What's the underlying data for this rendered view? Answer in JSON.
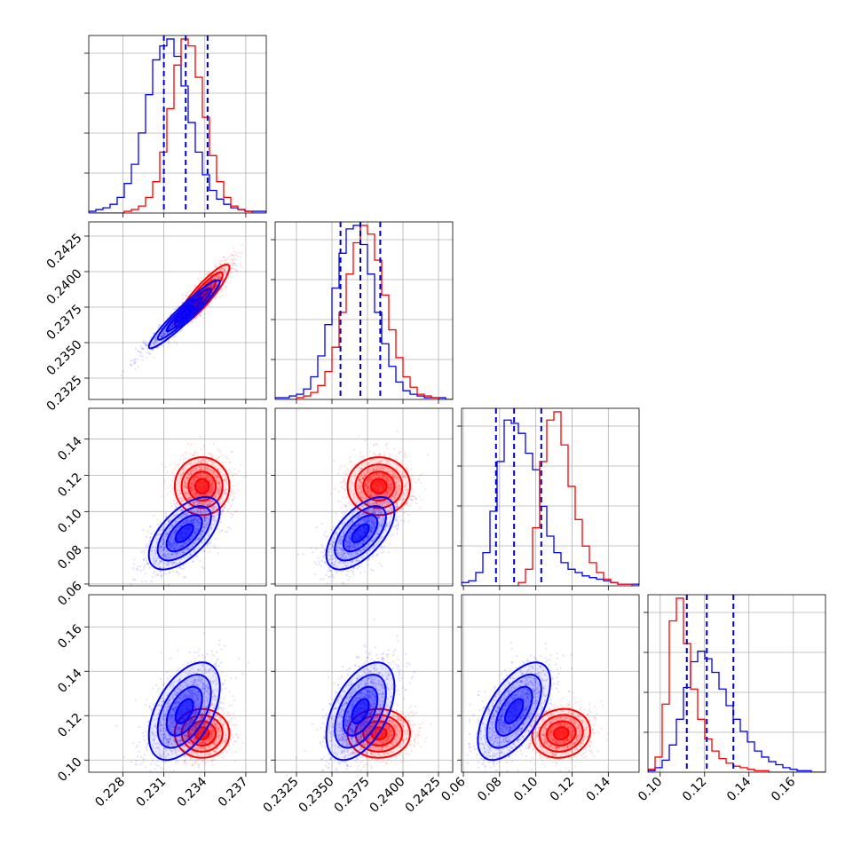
{
  "chart_data": {
    "type": "corner",
    "colors": {
      "series_a": "#0000ff",
      "series_b": "#ff0000",
      "quantiles": "#0000cc",
      "grid": "#b0b0b0"
    },
    "grid": true,
    "parameters": [
      {
        "range": [
          0.2255,
          0.2385
        ],
        "ticks": [
          {
            "value": 0.228,
            "label": "0.228"
          },
          {
            "value": 0.231,
            "label": "0.231"
          },
          {
            "value": 0.234,
            "label": "0.234"
          },
          {
            "value": 0.237,
            "label": "0.237"
          }
        ],
        "quantiles": [
          0.231,
          0.2326,
          0.2342
        ]
      },
      {
        "range": [
          0.231,
          0.2435
        ],
        "ticks": [
          {
            "value": 0.2325,
            "label": "0.2325"
          },
          {
            "value": 0.235,
            "label": "0.2350"
          },
          {
            "value": 0.2375,
            "label": "0.2375"
          },
          {
            "value": 0.24,
            "label": "0.2400"
          },
          {
            "value": 0.2425,
            "label": "0.2425"
          }
        ],
        "quantiles": [
          0.2356,
          0.237,
          0.2384
        ]
      },
      {
        "range": [
          0.059,
          0.157
        ],
        "ticks": [
          {
            "value": 0.06,
            "label": "0.06"
          },
          {
            "value": 0.08,
            "label": "0.08"
          },
          {
            "value": 0.1,
            "label": "0.10"
          },
          {
            "value": 0.12,
            "label": "0.12"
          },
          {
            "value": 0.14,
            "label": "0.14"
          }
        ],
        "quantiles": [
          0.078,
          0.088,
          0.103
        ]
      },
      {
        "range": [
          0.0945,
          0.1745
        ],
        "ticks": [
          {
            "value": 0.1,
            "label": "0.10"
          },
          {
            "value": 0.12,
            "label": "0.12"
          },
          {
            "value": 0.14,
            "label": "0.14"
          },
          {
            "value": 0.16,
            "label": "0.16"
          }
        ],
        "quantiles": [
          0.112,
          0.121,
          0.133
        ]
      }
    ],
    "series": [
      {
        "color": "#0000ff",
        "means": [
          0.2325,
          0.237,
          0.088,
          0.122
        ],
        "sds": [
          0.0013,
          0.0012,
          0.01,
          0.011
        ],
        "correlations": [
          [
            0,
            1,
            0.95
          ],
          [
            0,
            2,
            0.6
          ],
          [
            1,
            2,
            0.6
          ],
          [
            0,
            3,
            0.5
          ],
          [
            1,
            3,
            0.5
          ],
          [
            2,
            3,
            0.6
          ]
        ],
        "histograms": [
          {
            "edges": [
              0.2255,
              0.2385
            ],
            "counts": [
              1,
              2,
              3,
              5,
              9,
              17,
              28,
              46,
              68,
              88,
              96,
              100,
              90,
              73,
              52,
              35,
              22,
              13,
              8,
              5,
              3,
              2,
              1,
              1,
              1
            ]
          },
          {
            "edges": [
              0.231,
              0.2435
            ],
            "counts": [
              1,
              1,
              2,
              3,
              6,
              13,
              25,
              43,
              64,
              84,
              98,
              100,
              89,
              72,
              50,
              32,
              19,
              10,
              5,
              3,
              2,
              1,
              1,
              1,
              0
            ]
          },
          {
            "edges": [
              0.059,
              0.157
            ],
            "counts": [
              2,
              3,
              8,
              20,
              45,
              75,
              100,
              98,
              92,
              80,
              70,
              48,
              30,
              20,
              14,
              10,
              8,
              6,
              5,
              4,
              3,
              2,
              1,
              1,
              1
            ]
          },
          {
            "edges": [
              0.0945,
              0.1745
            ],
            "counts": [
              1,
              3,
              8,
              18,
              35,
              56,
              73,
              80,
              75,
              66,
              55,
              44,
              35,
              27,
              20,
              14,
              10,
              7,
              5,
              3,
              2,
              1,
              1,
              0,
              0
            ]
          }
        ]
      },
      {
        "color": "#ff0000",
        "means": [
          0.2338,
          0.2383,
          0.114,
          0.112
        ],
        "sds": [
          0.001,
          0.0011,
          0.008,
          0.0055
        ],
        "correlations": [
          [
            0,
            1,
            0.9
          ],
          [
            0,
            2,
            0.0
          ],
          [
            1,
            2,
            0.0
          ],
          [
            0,
            3,
            0.0
          ],
          [
            1,
            3,
            0.0
          ],
          [
            2,
            3,
            0.1
          ]
        ],
        "histograms": [
          {
            "edges": [
              0.2255,
              0.2385
            ],
            "counts": [
              0,
              0,
              0,
              0,
              0,
              1,
              2,
              4,
              9,
              18,
              35,
              60,
              85,
              100,
              96,
              78,
              55,
              33,
              18,
              9,
              4,
              2,
              1,
              0,
              0
            ]
          },
          {
            "edges": [
              0.231,
              0.2435
            ],
            "counts": [
              0,
              0,
              0,
              1,
              2,
              4,
              8,
              16,
              30,
              50,
              72,
              90,
              100,
              95,
              80,
              60,
              40,
              24,
              13,
              7,
              3,
              2,
              1,
              0,
              0
            ]
          },
          {
            "edges": [
              0.059,
              0.157
            ],
            "counts": [
              0,
              0,
              0,
              0,
              0,
              0,
              0,
              0,
              2,
              10,
              35,
              75,
              100,
              105,
              85,
              60,
              40,
              24,
              14,
              8,
              4,
              2,
              1,
              1,
              0
            ]
          },
          {
            "edges": [
              0.0945,
              0.1745
            ],
            "counts": [
              2,
              10,
              45,
              100,
              115,
              85,
              55,
              35,
              22,
              14,
              9,
              6,
              4,
              3,
              2,
              1,
              1,
              0,
              0,
              0,
              0,
              0,
              0,
              0,
              0
            ]
          }
        ]
      }
    ]
  }
}
